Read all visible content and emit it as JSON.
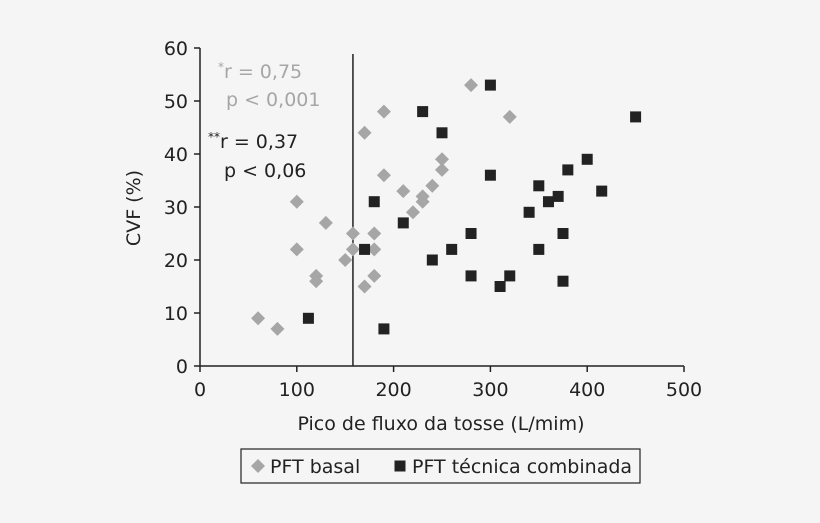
{
  "chart_data": {
    "type": "scatter",
    "xlabel": "Pico de fluxo da tosse (L/mim)",
    "ylabel": "CVF (%)",
    "xlim": [
      0,
      500
    ],
    "ylim": [
      0,
      60
    ],
    "x_ticks": [
      "0",
      "100",
      "200",
      "300",
      "400",
      "500"
    ],
    "y_ticks": [
      "0",
      "10",
      "20",
      "30",
      "40",
      "50",
      "60"
    ],
    "grid": false,
    "legend_position": "bottom",
    "reference_line_x": 158,
    "annotations": [
      {
        "sup": "*",
        "line1": "r = 0,75",
        "line2": "p < 0,001",
        "color": "#a6a6a6"
      },
      {
        "sup": "**",
        "line1": "r = 0,37",
        "line2": "p < 0,06",
        "color": "#222222"
      }
    ],
    "series": [
      {
        "name": "PFT basal",
        "marker": "diamond",
        "color": "#a6a6a6",
        "points": [
          [
            60,
            9
          ],
          [
            80,
            7
          ],
          [
            100,
            31
          ],
          [
            100,
            22
          ],
          [
            120,
            17
          ],
          [
            120,
            16
          ],
          [
            130,
            27
          ],
          [
            150,
            20
          ],
          [
            158,
            25
          ],
          [
            158,
            22
          ],
          [
            170,
            44
          ],
          [
            170,
            15
          ],
          [
            180,
            25
          ],
          [
            180,
            22
          ],
          [
            180,
            17
          ],
          [
            190,
            48
          ],
          [
            190,
            36
          ],
          [
            210,
            33
          ],
          [
            220,
            29
          ],
          [
            230,
            32
          ],
          [
            230,
            31
          ],
          [
            240,
            34
          ],
          [
            250,
            39
          ],
          [
            250,
            37
          ],
          [
            280,
            53
          ],
          [
            320,
            47
          ]
        ]
      },
      {
        "name": "PFT técnica combinada",
        "marker": "square",
        "color": "#222222",
        "points": [
          [
            112,
            9
          ],
          [
            170,
            22
          ],
          [
            180,
            31
          ],
          [
            190,
            7
          ],
          [
            210,
            27
          ],
          [
            230,
            48
          ],
          [
            240,
            20
          ],
          [
            250,
            44
          ],
          [
            260,
            22
          ],
          [
            280,
            25
          ],
          [
            280,
            17
          ],
          [
            300,
            53
          ],
          [
            300,
            36
          ],
          [
            310,
            15
          ],
          [
            320,
            17
          ],
          [
            340,
            29
          ],
          [
            350,
            34
          ],
          [
            350,
            22
          ],
          [
            360,
            31
          ],
          [
            370,
            32
          ],
          [
            375,
            25
          ],
          [
            375,
            16
          ],
          [
            380,
            37
          ],
          [
            400,
            39
          ],
          [
            415,
            33
          ],
          [
            450,
            47
          ]
        ]
      }
    ]
  }
}
